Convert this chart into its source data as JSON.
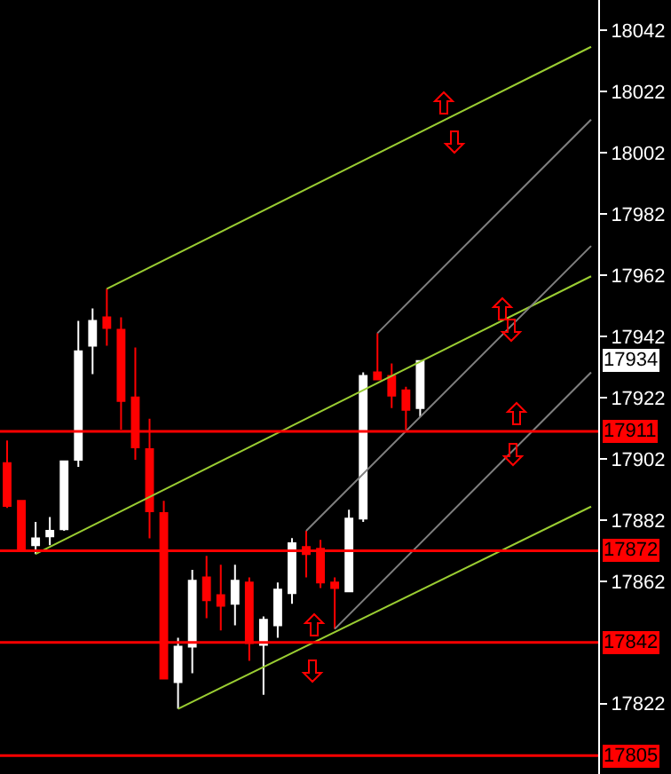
{
  "chart_data": {
    "type": "candlestick",
    "categories": [
      null,
      null,
      null,
      null,
      null,
      null,
      null,
      null,
      null,
      null,
      null,
      null,
      null,
      null,
      null,
      null,
      null,
      null,
      null,
      null,
      null,
      null,
      null,
      null,
      null,
      null,
      null,
      null,
      null,
      null,
      null,
      null,
      null,
      null,
      null,
      null,
      null,
      null,
      null,
      null,
      null,
      null
    ],
    "ohlc": [
      [
        17900.6,
        17908,
        17886,
        17886.6
      ],
      [
        17888.3,
        17888.3,
        17872.6,
        17872.6
      ],
      [
        17873.8,
        17881.4,
        17870.9,
        17876
      ],
      [
        17876.7,
        17883,
        17873.8,
        17878.5
      ],
      [
        17879,
        17901.2,
        17878.5,
        17901.2
      ],
      [
        17901.7,
        17947.1,
        17899.4,
        17937.2
      ],
      [
        17939,
        17951.2,
        17929.7,
        17947.1
      ],
      [
        17948.3,
        17957.6,
        17939,
        17944.8
      ],
      [
        17944.2,
        17948.3,
        17911.6,
        17920.9
      ],
      [
        17922.1,
        17938.4,
        17901.7,
        17905.8
      ],
      [
        17905.2,
        17915.1,
        17876,
        17884.9
      ],
      [
        17884.3,
        17888.3,
        17830,
        17830.2
      ],
      [
        17829,
        17843.5,
        17820.3,
        17840.6
      ],
      [
        17840.6,
        17865.7,
        17831.9,
        17862.2
      ],
      [
        17863.3,
        17870.3,
        17849.9,
        17855.8
      ],
      [
        17857.5,
        17867.4,
        17845.9,
        17854
      ],
      [
        17854.6,
        17867.4,
        17847.6,
        17862.2
      ],
      [
        17861.6,
        17863.3,
        17836,
        17841.8
      ],
      [
        17841.2,
        17850.5,
        17824.9,
        17849.4
      ],
      [
        17847.6,
        17861.6,
        17843.5,
        17859.3
      ],
      [
        17858.1,
        17876.1,
        17854.6,
        17874.4
      ],
      [
        17873.2,
        17878.5,
        17863.3,
        17870.9
      ],
      [
        17872.6,
        17875.5,
        17859.8,
        17861.6
      ],
      [
        17861.6,
        17863.3,
        17846.4,
        17859.8
      ],
      [
        17858.7,
        17885.4,
        17858.7,
        17882.5
      ],
      [
        17882.5,
        17930.3,
        17881.4,
        17929.1
      ],
      [
        17930.3,
        17943.1,
        17928,
        17928
      ],
      [
        17929.1,
        17933.2,
        17918.6,
        17922.7
      ],
      [
        17924.4,
        17925.6,
        17911.6,
        17918
      ],
      [
        17918.6,
        17934,
        17915.7,
        17934
      ],
      null,
      null,
      null,
      null,
      null,
      null,
      null,
      null,
      null,
      null,
      null,
      null
    ],
    "colors": [
      "#ff0000",
      "#ff0000",
      "#ffffff",
      "#ffffff",
      "#ffffff",
      "#ffffff",
      "#ffffff",
      "#ff0000",
      "#ff0000",
      "#ff0000",
      "#ff0000",
      "#ff0000",
      "#ffffff",
      "#ffffff",
      "#ff0000",
      "#ff0000",
      "#ffffff",
      "#ff0000",
      "#ffffff",
      "#ffffff",
      "#ffffff",
      "#ff0000",
      "#ff0000",
      "#ff0000",
      "#ffffff",
      "#ffffff",
      "#ff0000",
      "#ff0000",
      "#ff0000",
      "#ffffff",
      null,
      null,
      null,
      null,
      null,
      null,
      null,
      null,
      null,
      null,
      null,
      null
    ],
    "series": [
      {
        "type": "line",
        "color": "#9acd32",
        "values": [
          null,
          null,
          null,
          null,
          null,
          null,
          null,
          17957.6,
          null,
          null,
          null,
          null,
          null,
          null,
          null,
          null,
          null,
          null,
          null,
          null,
          null,
          null,
          null,
          null,
          null,
          null,
          null,
          null,
          null,
          null,
          null,
          null,
          null,
          null,
          null,
          null,
          null,
          null,
          null,
          null,
          null,
          18036.7
        ]
      },
      {
        "type": "line",
        "color": "#9acd32",
        "values": [
          null,
          null,
          17870.9,
          null,
          null,
          null,
          null,
          null,
          null,
          null,
          null,
          null,
          null,
          null,
          null,
          null,
          null,
          null,
          null,
          null,
          null,
          null,
          null,
          null,
          null,
          null,
          null,
          null,
          null,
          null,
          null,
          null,
          null,
          null,
          null,
          null,
          null,
          null,
          null,
          null,
          null,
          17961.7
        ]
      },
      {
        "type": "line",
        "color": "#9acd32",
        "values": [
          null,
          null,
          null,
          null,
          null,
          null,
          null,
          null,
          null,
          null,
          null,
          null,
          17820.3,
          null,
          null,
          null,
          null,
          null,
          null,
          null,
          null,
          null,
          null,
          null,
          null,
          null,
          null,
          null,
          null,
          null,
          null,
          null,
          null,
          null,
          null,
          null,
          null,
          null,
          null,
          null,
          null,
          17886.4
        ]
      },
      {
        "type": "line",
        "color": "#808080",
        "values": [
          null,
          null,
          null,
          null,
          null,
          null,
          null,
          null,
          null,
          null,
          null,
          null,
          null,
          null,
          null,
          null,
          null,
          null,
          null,
          null,
          null,
          null,
          null,
          null,
          null,
          null,
          17943.1,
          null,
          null,
          null,
          null,
          null,
          null,
          null,
          null,
          null,
          null,
          null,
          null,
          null,
          null,
          18012.9
        ]
      },
      {
        "type": "line",
        "color": "#808080",
        "values": [
          null,
          null,
          null,
          null,
          null,
          null,
          null,
          null,
          null,
          null,
          null,
          null,
          null,
          null,
          null,
          null,
          null,
          null,
          null,
          null,
          null,
          17878.5,
          null,
          null,
          null,
          null,
          null,
          null,
          null,
          null,
          null,
          null,
          null,
          null,
          null,
          null,
          null,
          null,
          null,
          null,
          null,
          17971.6
        ]
      },
      {
        "type": "line",
        "color": "#808080",
        "values": [
          null,
          null,
          null,
          null,
          null,
          null,
          null,
          null,
          null,
          null,
          null,
          null,
          null,
          null,
          null,
          null,
          null,
          null,
          null,
          null,
          null,
          null,
          null,
          17846.4,
          null,
          null,
          null,
          null,
          null,
          null,
          null,
          null,
          null,
          null,
          null,
          null,
          null,
          null,
          null,
          null,
          null,
          17930.3
        ]
      }
    ],
    "ylim": [
      17799,
      18052
    ],
    "yticks": [
      18042,
      18022,
      18002,
      17982,
      17962,
      17942,
      17922,
      17902,
      17882,
      17862,
      17822
    ],
    "ref_lines": [
      {
        "axis": "y",
        "value": 17911,
        "label": "17911",
        "color": "#ff0000"
      },
      {
        "axis": "y",
        "value": 17872,
        "label": "17872",
        "color": "#ff0000"
      },
      {
        "axis": "y",
        "value": 17842,
        "label": "17842",
        "color": "#ff0000"
      },
      {
        "axis": "y",
        "value": 17805,
        "label": "17805",
        "color": "#ff0000"
      }
    ],
    "annotations": [
      {
        "text": "17934",
        "y": 17934
      }
    ],
    "tick_labels": "y",
    "grid": false
  }
}
